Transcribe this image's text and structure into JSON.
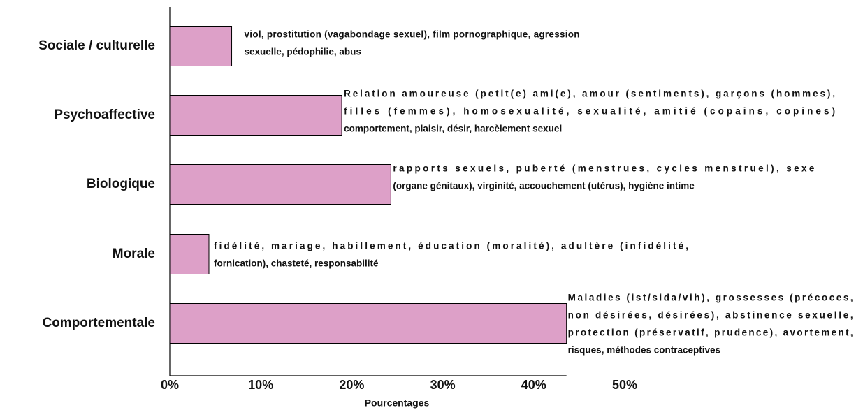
{
  "chart_data": {
    "type": "bar",
    "orientation": "horizontal",
    "categories": [
      "Sociale / culturelle",
      "Psychoaffective",
      "Biologique",
      "Morale",
      "Comportementale"
    ],
    "values": [
      6.8,
      18.9,
      24.3,
      4.3,
      43.6
    ],
    "color": "#dda0c8",
    "xlabel": "Pourcentages",
    "xlim": [
      0,
      50
    ],
    "xticks": [
      {
        "value": 0,
        "label": "0%"
      },
      {
        "value": 10,
        "label": "10%"
      },
      {
        "value": 20,
        "label": "20%"
      },
      {
        "value": 30,
        "label": "30%"
      },
      {
        "value": 40,
        "label": "40%"
      },
      {
        "value": 50,
        "label": "50%"
      }
    ],
    "annotations": [
      [
        "viol, prostitution (vagabondage sexuel), film pornographique, agression",
        "sexuelle, pédophilie, abus"
      ],
      [
        "Relation amoureuse (petit(e) ami(e), amour (sentiments), garçons (hommes),",
        "filles (femmes), homosexualité, sexualité, amitié (copains, copines)",
        "comportement, plaisir, désir, harcèlement sexuel"
      ],
      [
        "rapports sexuels, puberté (menstrues, cycles menstruel), sexe",
        "(organe génitaux), virginité, accouchement (utérus), hygiène intime"
      ],
      [
        "fidélité, mariage, habillement, éducation (moralité), adultère (infidélité,",
        "fornication), chasteté, responsabilité"
      ],
      [
        "Maladies (ist/sida/vih), grossesses (précoces,",
        "non désirées, désirées), abstinence sexuelle,",
        "protection (préservatif, prudence), avortement,",
        "risques, méthodes contraceptives"
      ]
    ]
  }
}
